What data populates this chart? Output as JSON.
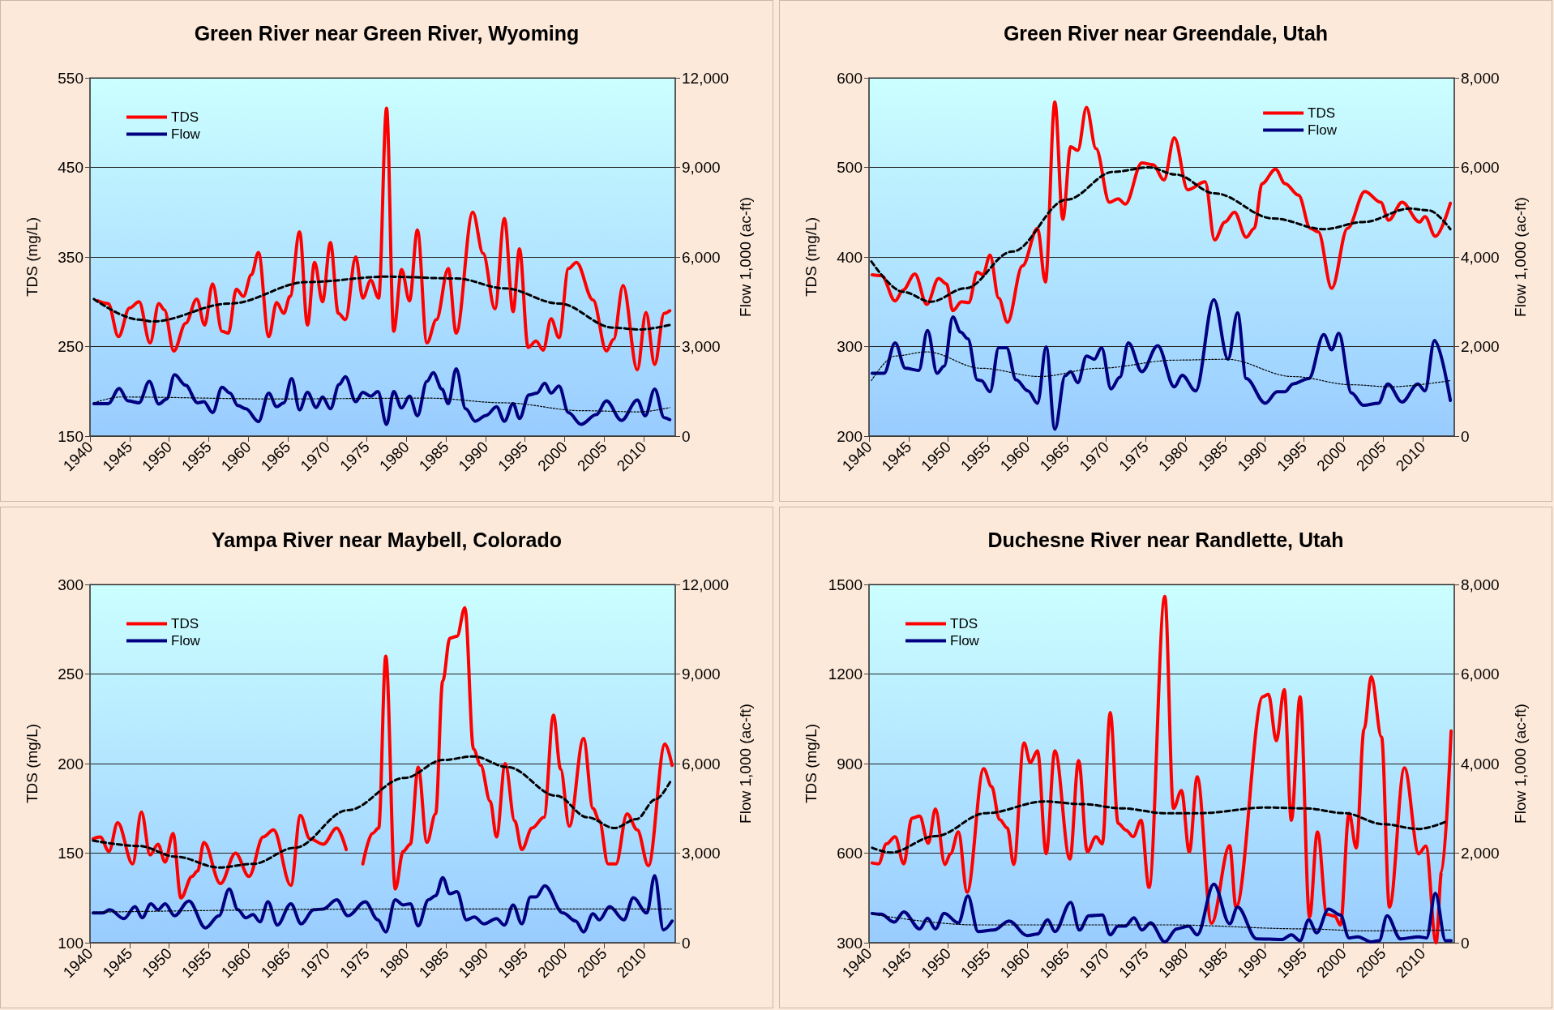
{
  "chart_data": [
    {
      "type": "line",
      "title": "Green River near Green River, Wyoming",
      "ylabel": "TDS (mg/L)",
      "y2label": "Flow 1,000 (ac-ft)",
      "xlim": [
        1940,
        2014
      ],
      "xticks": [
        1940,
        1945,
        1950,
        1955,
        1960,
        1965,
        1970,
        1975,
        1980,
        1985,
        1990,
        1995,
        2000,
        2005,
        2010
      ],
      "ylim": [
        150,
        550
      ],
      "yticks": [
        150,
        250,
        350,
        450,
        550
      ],
      "y2lim": [
        0,
        12000
      ],
      "y2ticks": [
        {
          "value": 0,
          "label": "0"
        },
        {
          "value": 3000,
          "label": "3,000"
        },
        {
          "value": 6000,
          "label": "6,000"
        },
        {
          "value": 9000,
          "label": "9,000"
        },
        {
          "value": 12000,
          "label": "12,000"
        }
      ],
      "grid": "y",
      "legend": "top left",
      "marker": "none",
      "series": [
        {
          "name": "TDS",
          "color": "#ff0000",
          "line_style": "solid",
          "x": [
            1941.0,
            1942.3,
            1943.6,
            1945.0,
            1946.2,
            1947.6,
            1948.7,
            1949.4,
            1950.6,
            1952.1,
            1953.5,
            1954.5,
            1955.5,
            1956.7,
            1957.5,
            1958.5,
            1959.4,
            1960.4,
            1961.3,
            1962.6,
            1963.6,
            1964.5,
            1965.3,
            1966.5,
            1967.5,
            1968.4,
            1969.4,
            1970.4,
            1971.4,
            1972.3,
            1973.6,
            1974.5,
            1975.5,
            1976.5,
            1977.5,
            1978.4,
            1979.4,
            1980.4,
            1981.4,
            1982.6,
            1983.8,
            1985.3,
            1986.3,
            1988.4,
            1989.7,
            1991.2,
            1992.4,
            1993.5,
            1994.3,
            1995.4,
            1996.4,
            1997.3,
            1998.3,
            1999.3,
            2000.5,
            2001.5,
            2003.6,
            2005.3,
            2006.2,
            2007.4,
            2009.2,
            2010.3,
            2011.4,
            2012.6,
            2013.3
          ],
          "values": [
            301,
            298,
            261,
            293,
            300,
            254,
            298,
            291,
            245,
            276,
            303,
            274,
            320,
            267,
            265,
            314,
            306,
            330,
            355,
            261,
            299,
            287,
            306,
            378,
            274,
            344,
            300,
            366,
            287,
            280,
            350,
            304,
            324,
            304,
            516,
            267,
            336,
            301,
            380,
            254,
            280,
            337,
            265,
            400,
            354,
            292,
            393,
            289,
            359,
            249,
            256,
            246,
            281,
            260,
            337,
            344,
            302,
            245,
            258,
            318,
            224,
            288,
            230,
            287,
            290
          ]
        },
        {
          "name": "Flow",
          "color": "#000080",
          "line_style": "solid",
          "axis": "y2",
          "x": [
            1940.5,
            1942.3,
            1943.7,
            1944.8,
            1946.2,
            1947.5,
            1948.7,
            1949.7,
            1950.7,
            1952.1,
            1953.6,
            1954.4,
            1955.5,
            1956.7,
            1957.7,
            1958.7,
            1959.7,
            1961.3,
            1962.6,
            1963.6,
            1964.5,
            1965.5,
            1966.5,
            1967.5,
            1968.6,
            1969.4,
            1970.4,
            1971.5,
            1972.3,
            1973.6,
            1974.5,
            1975.5,
            1976.4,
            1977.5,
            1978.4,
            1979.4,
            1980.4,
            1981.4,
            1982.6,
            1983.4,
            1984.5,
            1985.3,
            1986.3,
            1987.5,
            1988.7,
            1990.1,
            1991.4,
            1992.4,
            1993.5,
            1994.3,
            1995.5,
            1996.5,
            1997.5,
            1998.3,
            1999.3,
            2000.5,
            2002.1,
            2004.0,
            2005.3,
            2007.2,
            2009.2,
            2010.2,
            2011.4,
            2012.6,
            2013.3
          ],
          "values": [
            1087,
            1087,
            1598,
            1179,
            1114,
            1834,
            1074,
            1245,
            2057,
            1703,
            1114,
            1153,
            786,
            1638,
            1441,
            1022,
            917,
            485,
            1441,
            983,
            1114,
            1926,
            878,
            1467,
            956,
            1310,
            917,
            1729,
            1991,
            1153,
            1467,
            1336,
            1493,
            393,
            1493,
            943,
            1336,
            681,
            1834,
            2122,
            1572,
            1087,
            2253,
            917,
            498,
            694,
            983,
            498,
            1087,
            590,
            1376,
            1441,
            1769,
            1441,
            1677,
            786,
            393,
            720,
            1179,
            524,
            1205,
            681,
            1572,
            616,
            550
          ]
        },
        {
          "color": "#000000",
          "line_style": "dashed",
          "x": [
            1940.5,
            1946.2,
            1947.9,
            1957.7,
            1967.5,
            1977.5,
            1986.3,
            1992.4,
            1999.3,
            2006.2,
            2009.5,
            2013.3
          ],
          "values": [
            303,
            280,
            278,
            298,
            322,
            328,
            326,
            315,
            298,
            271,
            269,
            274
          ]
        },
        {
          "color": "#000000",
          "line_style": "dotted",
          "axis": "y2",
          "x": [
            1940.5,
            1943.8,
            1963.3,
            1982.8,
            1992.4,
            2002.2,
            2009.5,
            2013.3
          ],
          "values": [
            1114,
            1310,
            1245,
            1271,
            1114,
            851,
            812,
            956
          ]
        }
      ]
    },
    {
      "type": "line",
      "title": "Green River near Greendale, Utah",
      "ylabel": "TDS (mg/L)",
      "y2label": "Flow 1,000 (ac-ft)",
      "xlim": [
        1940,
        2014
      ],
      "xticks": [
        1940,
        1945,
        1950,
        1955,
        1960,
        1965,
        1970,
        1975,
        1980,
        1985,
        1990,
        1995,
        2000,
        2005,
        2010
      ],
      "ylim": [
        200,
        600
      ],
      "yticks": [
        200,
        300,
        400,
        500,
        600
      ],
      "y2lim": [
        0,
        8000
      ],
      "y2ticks": [
        {
          "value": 0,
          "label": "0"
        },
        {
          "value": 2000,
          "label": "2,000"
        },
        {
          "value": 4000,
          "label": "4,000"
        },
        {
          "value": 6000,
          "label": "6,000"
        },
        {
          "value": 8000,
          "label": "8,000"
        }
      ],
      "grid": "y",
      "legend": "top right",
      "marker": "none",
      "series": [
        {
          "name": "TDS",
          "color": "#ff0000",
          "line_style": "solid",
          "x": [
            1940.4,
            1941.6,
            1943.3,
            1944.3,
            1945.8,
            1947.3,
            1948.8,
            1949.8,
            1950.6,
            1951.7,
            1952.6,
            1953.7,
            1954.4,
            1955.3,
            1956.4,
            1957.5,
            1959.4,
            1961.3,
            1962.3,
            1963.5,
            1964.5,
            1965.5,
            1966.4,
            1967.5,
            1968.7,
            1970.4,
            1971.5,
            1972.4,
            1974.5,
            1975.9,
            1977.3,
            1978.6,
            1980.3,
            1982.5,
            1983.7,
            1985.0,
            1986.2,
            1987.7,
            1988.7,
            1989.7,
            1991.4,
            1992.6,
            1994.3,
            1995.8,
            1996.8,
            1998.5,
            2000.5,
            2002.7,
            2004.7,
            2005.7,
            2007.4,
            2009.6,
            2010.3,
            2011.6,
            2013.5
          ],
          "values": [
            380,
            379,
            351,
            363,
            381,
            347,
            376,
            370,
            340,
            350,
            349,
            383,
            380,
            402,
            354,
            327,
            390,
            432,
            372,
            573,
            442,
            523,
            519,
            567,
            521,
            461,
            465,
            459,
            505,
            503,
            486,
            533,
            475,
            484,
            419,
            439,
            450,
            422,
            432,
            482,
            498,
            482,
            469,
            432,
            428,
            365,
            432,
            473,
            461,
            441,
            461,
            439,
            445,
            423,
            460
          ]
        },
        {
          "name": "Flow",
          "color": "#000080",
          "line_style": "solid",
          "axis": "y2",
          "x": [
            1940.4,
            1941.9,
            1943.3,
            1944.6,
            1946.3,
            1947.4,
            1948.6,
            1949.5,
            1950.6,
            1951.6,
            1952.5,
            1953.7,
            1954.2,
            1955.3,
            1956.4,
            1957.4,
            1958.6,
            1960.1,
            1961.3,
            1962.4,
            1963.5,
            1964.8,
            1965.5,
            1966.4,
            1967.5,
            1968.5,
            1969.4,
            1970.6,
            1971.7,
            1972.8,
            1974.5,
            1976.5,
            1978.6,
            1979.6,
            1981.3,
            1983.6,
            1985.4,
            1986.6,
            1987.7,
            1990.1,
            1991.6,
            1992.6,
            1993.6,
            1995.6,
            1997.5,
            1998.5,
            1999.4,
            2001.0,
            2002.5,
            2004.4,
            2005.6,
            2007.4,
            2009.4,
            2010.3,
            2011.5,
            2013.5
          ],
          "values": [
            1404,
            1404,
            2083,
            1514,
            1468,
            2358,
            1404,
            1560,
            2660,
            2321,
            2174,
            1257,
            1239,
            991,
            1972,
            1972,
            1257,
            1009,
            734,
            1991,
            156,
            1349,
            1440,
            1193,
            1789,
            1716,
            1972,
            1055,
            1312,
            2083,
            1440,
            2018,
            1101,
            1358,
            1009,
            3046,
            1716,
            2752,
            1284,
            734,
            991,
            991,
            1165,
            1284,
            2266,
            1927,
            2294,
            963,
            688,
            734,
            1165,
            761,
            1165,
            1009,
            2138,
            798
          ]
        },
        {
          "color": "#000000",
          "line_style": "dashed",
          "x": [
            1940.3,
            1944.3,
            1947.8,
            1952.2,
            1958.1,
            1965.0,
            1970.9,
            1975.4,
            1978.8,
            1983.7,
            1991.1,
            1997.5,
            2002.5,
            2008.4,
            2010.8,
            2013.5
          ],
          "values": [
            395,
            361,
            350,
            365,
            406,
            464,
            495,
            500,
            492,
            471,
            443,
            431,
            439,
            454,
            452,
            431
          ]
        },
        {
          "color": "#000000",
          "line_style": "dotted",
          "axis": "y2",
          "x": [
            1940.3,
            1943.3,
            1947.3,
            1954.2,
            1961.6,
            1969.0,
            1978.8,
            1985.2,
            1993.6,
            2001.0,
            2005.9,
            2013.5
          ],
          "values": [
            1239,
            1789,
            1881,
            1514,
            1330,
            1514,
            1697,
            1716,
            1330,
            1147,
            1101,
            1239
          ]
        }
      ]
    },
    {
      "type": "line",
      "title": "Yampa River near Maybell, Colorado",
      "ylabel": "TDS (mg/L)",
      "y2label": "Flow 1,000 (ac-ft)",
      "xlim": [
        1940,
        2014
      ],
      "xticks": [
        1940,
        1945,
        1950,
        1955,
        1960,
        1965,
        1970,
        1975,
        1980,
        1985,
        1990,
        1995,
        2000,
        2005,
        2010
      ],
      "ylim": [
        100,
        300
      ],
      "yticks": [
        100,
        150,
        200,
        250,
        300
      ],
      "y2lim": [
        0,
        12000
      ],
      "y2ticks": [
        {
          "value": 0,
          "label": "0"
        },
        {
          "value": 3000,
          "label": "3,000"
        },
        {
          "value": 6000,
          "label": "6,000"
        },
        {
          "value": 9000,
          "label": "9,000"
        },
        {
          "value": 12000,
          "label": "12,000"
        }
      ],
      "grid": "y",
      "legend": "top left",
      "marker": "none",
      "series": [
        {
          "name": "TDS",
          "color": "#ff0000",
          "line_style": "solid",
          "x": [
            1940.4,
            1941.3,
            1942.4,
            1943.5,
            1945.4,
            1946.5,
            1947.6,
            1948.6,
            1949.5,
            1950.5,
            1951.5,
            1952.9,
            1953.6,
            1954.4,
            1956.5,
            1958.4,
            1960.1,
            1961.9,
            1963.2,
            1965.4,
            1966.6,
            1967.8,
            1969.5,
            1971.2,
            1972.4,
            1973.3,
            1974.5,
            1975.7,
            1976.5,
            1977.4,
            1978.6,
            1979.6,
            1980.5,
            1981.5,
            1982.6,
            1983.7,
            1984.6,
            1985.5,
            1986.4,
            1987.4,
            1988.5,
            1989.4,
            1990.6,
            1991.4,
            1992.5,
            1993.7,
            1994.6,
            1995.9,
            1997.4,
            1998.6,
            1999.5,
            2000.6,
            2002.4,
            2003.6,
            2004.4,
            2005.5,
            2006.5,
            2007.9,
            2009.2,
            2010.6,
            2012.7,
            2013.6
          ],
          "values": [
            158,
            159,
            151,
            167,
            144,
            173,
            149,
            155,
            145,
            161,
            125,
            137,
            140,
            156,
            133,
            150,
            137,
            159,
            163,
            132,
            171,
            158,
            155,
            164,
            152,
            null,
            144,
            161,
            164,
            260,
            130,
            151,
            155,
            198,
            156,
            172,
            246,
            270,
            271,
            287,
            208,
            199,
            179,
            159,
            200,
            168,
            152,
            164,
            170,
            227,
            197,
            165,
            214,
            175,
            168,
            144,
            144,
            172,
            163,
            143,
            211,
            199
          ]
        },
        {
          "name": "Flow",
          "color": "#000080",
          "line_style": "solid",
          "axis": "y2",
          "x": [
            1940.4,
            1941.6,
            1942.5,
            1944.3,
            1945.7,
            1946.6,
            1947.7,
            1948.6,
            1949.5,
            1950.7,
            1952.5,
            1954.6,
            1956.3,
            1957.6,
            1958.7,
            1959.7,
            1960.6,
            1961.5,
            1962.5,
            1963.7,
            1965.4,
            1966.7,
            1968.3,
            1969.5,
            1971.2,
            1972.6,
            1974.8,
            1976.4,
            1977.4,
            1978.6,
            1979.6,
            1980.5,
            1981.5,
            1982.8,
            1983.7,
            1984.6,
            1985.5,
            1986.4,
            1987.6,
            1988.6,
            1989.8,
            1991.4,
            1992.4,
            1993.5,
            1994.6,
            1995.7,
            1996.4,
            1997.5,
            1999.8,
            2001.4,
            2002.4,
            2003.6,
            2004.4,
            2005.7,
            2007.5,
            2008.7,
            2010.4,
            2011.4,
            2012.5,
            2013.6
          ],
          "values": [
            995,
            995,
            1103,
            807,
            1211,
            834,
            1305,
            1103,
            1305,
            901,
            1399,
            498,
            901,
            1802,
            1103,
            834,
            942,
            699,
            1372,
            592,
            1305,
            632,
            1103,
            1130,
            1439,
            901,
            1372,
            767,
            363,
            1439,
            1264,
            1305,
            565,
            1439,
            1574,
            2179,
            1641,
            1708,
            767,
            861,
            632,
            807,
            592,
            1264,
            632,
            1533,
            1533,
            1910,
            995,
            726,
            363,
            968,
            767,
            1211,
            767,
            1506,
            995,
            2246,
            430,
            726
          ]
        },
        {
          "color": "#000000",
          "line_style": "dashed",
          "x": [
            1940.4,
            1946.2,
            1950.9,
            1956.3,
            1960.6,
            1965.9,
            1972.6,
            1979.8,
            1984.6,
            1988.5,
            1992.8,
            1999.0,
            2002.9,
            2006.3,
            2009.1,
            2011.5,
            2013.5
          ],
          "values": [
            157,
            154,
            148,
            142,
            144,
            153,
            174,
            192,
            202,
            204,
            198,
            182,
            170,
            164,
            169,
            180,
            191
          ]
        },
        {
          "color": "#000000",
          "line_style": "dotted",
          "axis": "y2",
          "x": [
            1940.4,
            1977.4,
            2013.5
          ],
          "values": [
            1022,
            1130,
            1130
          ]
        }
      ]
    },
    {
      "type": "line",
      "title": "Duchesne River near Randlette, Utah",
      "ylabel": "TDS (mg/L)",
      "y2label": "Flow 1,000 (ac-ft)",
      "xlim": [
        1940,
        2014
      ],
      "xticks": [
        1940,
        1945,
        1950,
        1955,
        1960,
        1965,
        1970,
        1975,
        1980,
        1985,
        1990,
        1995,
        2000,
        2005,
        2010
      ],
      "ylim": [
        300,
        1500
      ],
      "yticks": [
        300,
        600,
        900,
        1200,
        1500
      ],
      "y2lim": [
        0,
        8000
      ],
      "y2ticks": [
        {
          "value": 0,
          "label": "0"
        },
        {
          "value": 2000,
          "label": "2,000"
        },
        {
          "value": 4000,
          "label": "4,000"
        },
        {
          "value": 6000,
          "label": "6,000"
        },
        {
          "value": 8000,
          "label": "8,000"
        }
      ],
      "grid": "y",
      "legend": "top left",
      "marker": "none",
      "series": [
        {
          "name": "TDS",
          "color": "#ff0000",
          "line_style": "solid",
          "x": [
            1940.4,
            1941.2,
            1942.2,
            1943.3,
            1944.4,
            1945.4,
            1946.4,
            1947.5,
            1948.4,
            1949.6,
            1950.3,
            1951.3,
            1952.4,
            1954.5,
            1955.5,
            1956.5,
            1957.5,
            1958.3,
            1959.6,
            1960.4,
            1961.3,
            1962.4,
            1963.5,
            1965.4,
            1966.5,
            1967.6,
            1968.7,
            1969.5,
            1970.5,
            1971.5,
            1972.5,
            1973.4,
            1974.4,
            1975.4,
            1977.4,
            1978.5,
            1979.5,
            1980.5,
            1981.5,
            1983.3,
            1985.6,
            1986.4,
            1989.8,
            1990.5,
            1991.5,
            1992.5,
            1993.4,
            1994.5,
            1995.7,
            1996.7,
            1997.9,
            1998.9,
            1999.6,
            2000.7,
            2001.6,
            2002.6,
            2003.5,
            2004.8,
            2005.8,
            2007.7,
            2009.5,
            2010.4,
            2011.7,
            2012.4,
            2013.6
          ],
          "values": [
            567,
            564,
            631,
            655,
            564,
            717,
            724,
            633,
            748,
            562,
            598,
            671,
            469,
            883,
            823,
            713,
            684,
            562,
            969,
            903,
            943,
            598,
            943,
            580,
            910,
            605,
            655,
            631,
            1071,
            700,
            677,
            655,
            710,
            485,
            1460,
            750,
            810,
            604,
            856,
            365,
            625,
            419,
            1124,
            1132,
            976,
            1148,
            710,
            1124,
            386,
            671,
            395,
            389,
            359,
            734,
            617,
            1016,
            1191,
            989,
            419,
            886,
            598,
            624,
            300,
            538,
            1009
          ]
        },
        {
          "name": "Flow",
          "color": "#000080",
          "line_style": "solid",
          "axis": "y2",
          "x": [
            1940.4,
            1941.5,
            1943.2,
            1944.4,
            1946.4,
            1947.4,
            1948.4,
            1949.5,
            1951.3,
            1952.5,
            1953.8,
            1955.8,
            1957.7,
            1960.0,
            1961.3,
            1962.6,
            1963.5,
            1965.5,
            1966.6,
            1967.8,
            1969.5,
            1970.5,
            1971.5,
            1972.4,
            1973.5,
            1974.5,
            1975.6,
            1977.4,
            1978.9,
            1980.4,
            1981.5,
            1983.6,
            1985.6,
            1986.6,
            1989.0,
            1992.2,
            1993.4,
            1994.5,
            1995.6,
            1996.6,
            1998.1,
            1999.6,
            2000.7,
            2001.8,
            2003.5,
            2004.5,
            2005.5,
            2007.2,
            2009.5,
            2010.5,
            2011.6,
            2012.9,
            2013.6
          ],
          "values": [
            654,
            636,
            460,
            690,
            309,
            548,
            309,
            654,
            442,
            1043,
            248,
            283,
            486,
            159,
            194,
            513,
            248,
            902,
            283,
            601,
            619,
            177,
            371,
            371,
            557,
            283,
            442,
            20,
            309,
            371,
            177,
            1308,
            424,
            796,
            88,
            71,
            177,
            44,
            513,
            221,
            751,
            619,
            106,
            133,
            18,
            44,
            601,
            88,
            133,
            106,
            1105,
            44,
            44
          ]
        },
        {
          "color": "#000000",
          "line_style": "dashed",
          "x": [
            1940.4,
            1942.7,
            1948.4,
            1954.8,
            1962.2,
            1967.1,
            1972.0,
            1977.4,
            1981.9,
            1990.2,
            1995.2,
            2000.1,
            2005.0,
            2009.5,
            2013.2
          ],
          "values": [
            618,
            602,
            657,
            734,
            773,
            764,
            750,
            734,
            734,
            753,
            750,
            734,
            697,
            681,
            708
          ]
        },
        {
          "color": "#000000",
          "line_style": "dotted",
          "axis": "y2",
          "x": [
            1940.4,
            1953.3,
            1977.9,
            1995.2,
            2002.6,
            2013.6
          ],
          "values": [
            636,
            398,
            398,
            309,
            265,
            283
          ]
        }
      ]
    }
  ]
}
